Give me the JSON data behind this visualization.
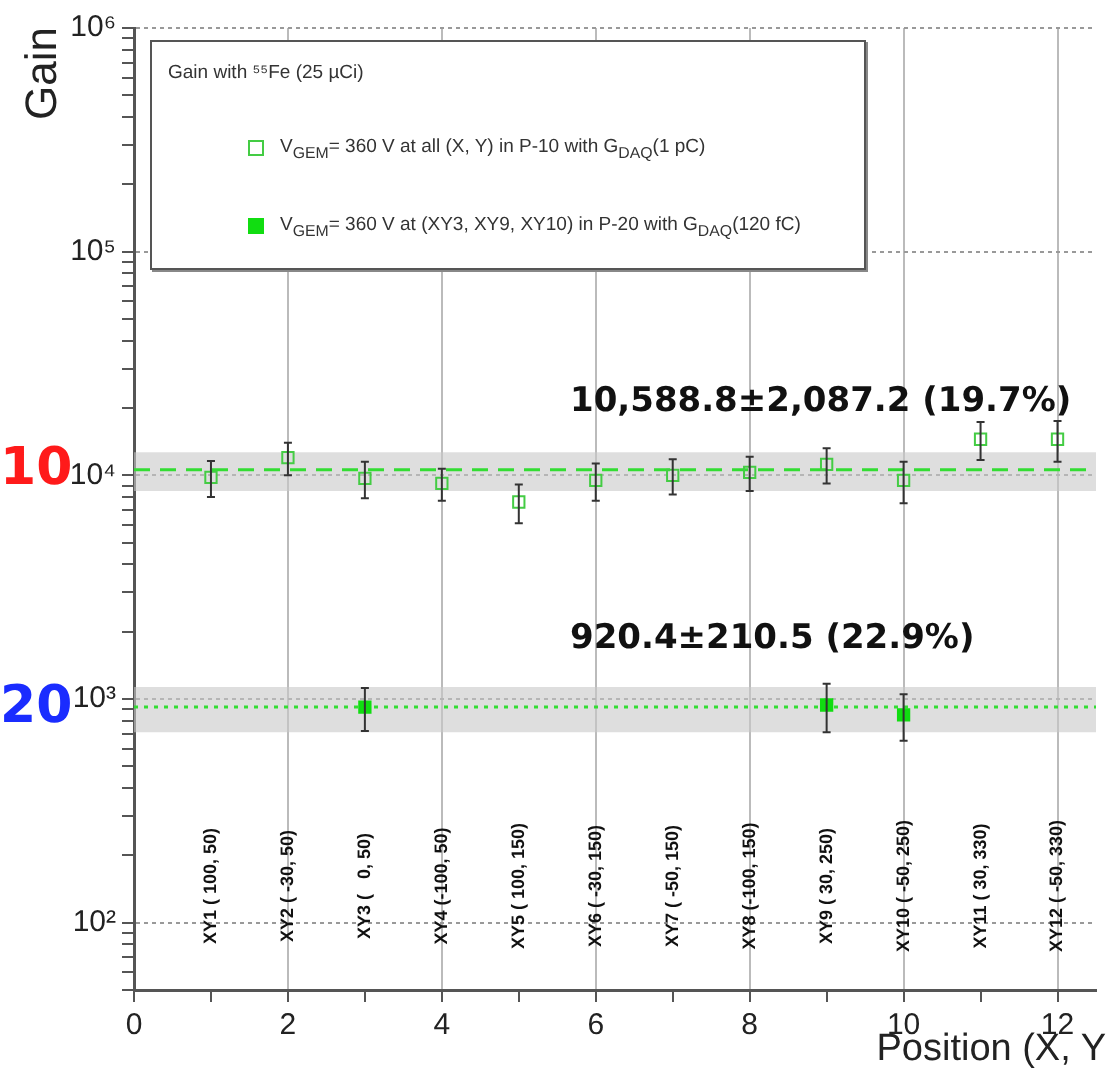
{
  "chart_data": {
    "type": "scatter",
    "xlabel": "Position (X, Y",
    "ylabel": "Gain",
    "legend_title": "Gain with ⁵⁵Fe (25 µCi)",
    "legend": "top left",
    "marker": "square",
    "log": "y",
    "grid": true,
    "xlim": [
      0,
      12.5
    ],
    "ylim": [
      50,
      1000000
    ],
    "xticks": [
      0,
      {
        "value": 1,
        "label": null
      },
      2,
      {
        "value": 3,
        "label": null
      },
      4,
      {
        "value": 5,
        "label": null
      },
      6,
      {
        "value": 7,
        "label": null
      },
      8,
      {
        "value": 9,
        "label": null
      },
      10,
      {
        "value": 11,
        "label": null
      },
      12
    ],
    "yticks": [
      {
        "value": 50,
        "label": null
      },
      {
        "value": 60,
        "label": null
      },
      {
        "value": 70,
        "label": null
      },
      {
        "value": 80,
        "label": null
      },
      {
        "value": 90,
        "label": null
      },
      {
        "value": 100,
        "label": "10²"
      },
      {
        "value": 200,
        "label": null
      },
      {
        "value": 300,
        "label": null
      },
      {
        "value": 400,
        "label": null
      },
      {
        "value": 500,
        "label": null
      },
      {
        "value": 600,
        "label": null
      },
      {
        "value": 700,
        "label": null
      },
      {
        "value": 800,
        "label": null
      },
      {
        "value": 900,
        "label": null
      },
      {
        "value": 1000,
        "label": "10³"
      },
      {
        "value": 2000,
        "label": null
      },
      {
        "value": 3000,
        "label": null
      },
      {
        "value": 4000,
        "label": null
      },
      {
        "value": 5000,
        "label": null
      },
      {
        "value": 6000,
        "label": null
      },
      {
        "value": 7000,
        "label": null
      },
      {
        "value": 8000,
        "label": null
      },
      {
        "value": 9000,
        "label": null
      },
      {
        "value": 10000,
        "label": "10⁴"
      },
      {
        "value": 20000,
        "label": null
      },
      {
        "value": 30000,
        "label": null
      },
      {
        "value": 40000,
        "label": null
      },
      {
        "value": 50000,
        "label": null
      },
      {
        "value": 60000,
        "label": null
      },
      {
        "value": 70000,
        "label": null
      },
      {
        "value": 80000,
        "label": null
      },
      {
        "value": 90000,
        "label": null
      },
      {
        "value": 100000,
        "label": "10⁵"
      },
      {
        "value": 200000,
        "label": null
      },
      {
        "value": 300000,
        "label": null
      },
      {
        "value": 400000,
        "label": null
      },
      {
        "value": 500000,
        "label": null
      },
      {
        "value": 600000,
        "label": null
      },
      {
        "value": 700000,
        "label": null
      },
      {
        "value": 800000,
        "label": null
      },
      {
        "value": 900000,
        "label": null
      },
      {
        "value": 1000000,
        "label": "10⁶"
      }
    ],
    "series": [
      {
        "name": "V$_{GEM}$= 360 V at all (X, Y) in P-10 with G$_{DAQ}$(1 pC)",
        "color": "#44cc44",
        "x": [
          1,
          2,
          3,
          4,
          5,
          6,
          7,
          8,
          9,
          10,
          11,
          12
        ],
        "values": [
          9800,
          12000,
          9700,
          9200,
          7600,
          9500,
          10000,
          10300,
          11200,
          9500,
          14500,
          14500
        ],
        "errors": [
          1800,
          2000,
          1800,
          1500,
          1500,
          1800,
          1800,
          1800,
          2000,
          2000,
          2800,
          3000
        ]
      },
      {
        "name": "V$_{GEM}$= 360 V at (XY3, XY9, XY10) in P-20 with G$_{DAQ}$(120 fC)",
        "color": "#11dd11",
        "x": [
          3,
          9,
          10
        ],
        "values": [
          920,
          940,
          850
        ],
        "errors": [
          200,
          230,
          200
        ]
      }
    ],
    "ref_lines": [
      {
        "axis": "y",
        "value": 10588.8,
        "color": "#33dd33",
        "line_style": "dashed"
      },
      {
        "axis": "y",
        "value": 920.4,
        "color": "#33dd33",
        "line_style": "dotted"
      }
    ],
    "bands": [
      {
        "axis": "y",
        "from": 8501.6,
        "to": 12676,
        "color": "#c8c8c8"
      },
      {
        "axis": "y",
        "from": 709.9,
        "to": 1130.9,
        "color": "#c8c8c8"
      }
    ],
    "annotations": [
      "10",
      "20",
      "10,588.8±2,087.2 (19.7%)",
      "920.4±210.5 (22.9%)",
      "XY1 ( 100, 50)",
      "XY2 ( -30, 50)",
      "XY3 (   0, 50)",
      "XY4 (-100, 50)",
      "XY5 ( 100, 150)",
      "XY6 ( -30, 150)",
      "XY7 ( -50, 150)",
      "XY8 (-100, 150)",
      "XY9 ( 30, 250)",
      "XY10 ( -50, 250)",
      "XY11 ( 30, 330)",
      "XY12 ( -50, 330)"
    ]
  }
}
